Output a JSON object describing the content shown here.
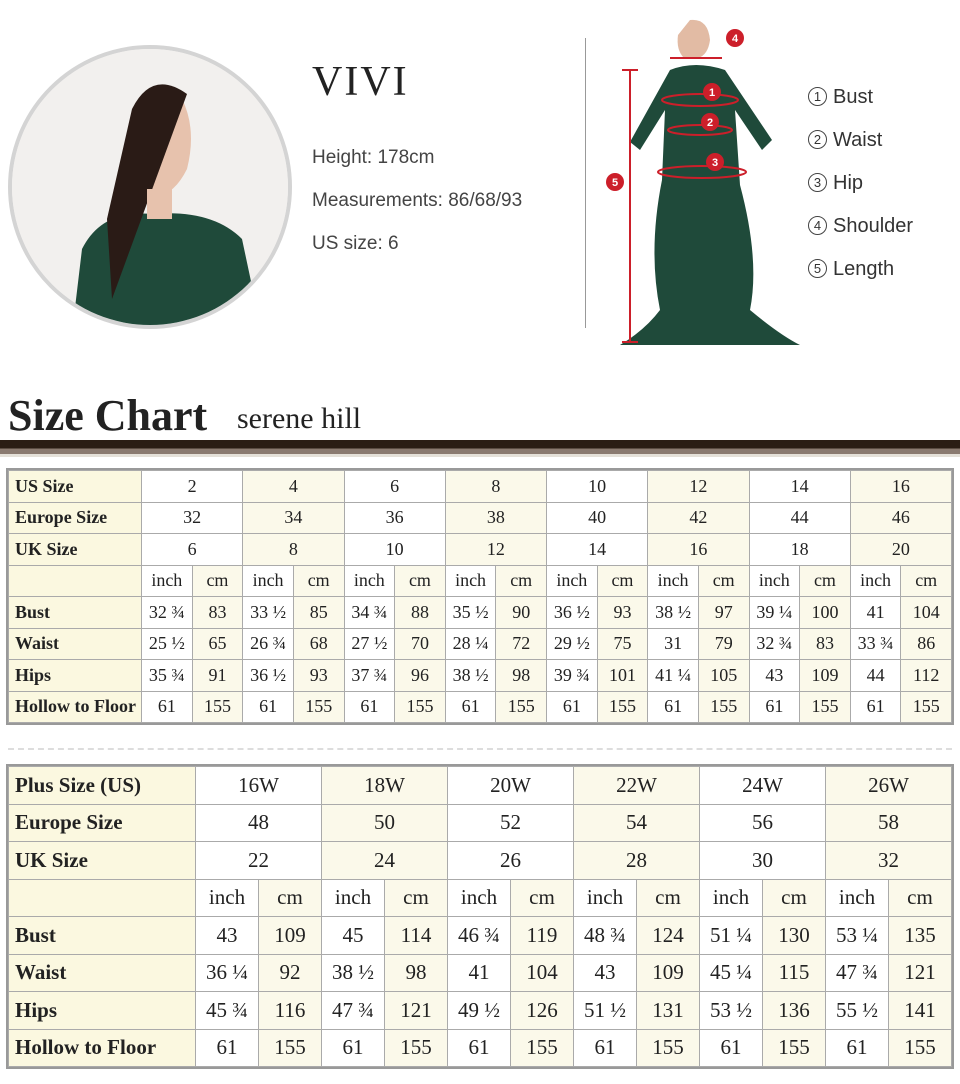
{
  "model": {
    "name": "VIVI",
    "height": "Height: 178cm",
    "measurements": "Measurements: 86/68/93",
    "us_size": "US size: 6"
  },
  "legend": [
    {
      "num": "1",
      "label": "Bust"
    },
    {
      "num": "2",
      "label": "Waist"
    },
    {
      "num": "3",
      "label": "Hip"
    },
    {
      "num": "4",
      "label": "Shoulder"
    },
    {
      "num": "5",
      "label": "Length"
    }
  ],
  "colors": {
    "dress": "#1f4a3a",
    "marker": "#cc1f2a",
    "rule": "#2a1d14",
    "header_cell": "#fbf8e0"
  },
  "title": "Size Chart",
  "brand": "serene hill",
  "standard": {
    "sizes": [
      [
        "US Size",
        "2",
        "4",
        "6",
        "8",
        "10",
        "12",
        "14",
        "16"
      ],
      [
        "Europe Size",
        "32",
        "34",
        "36",
        "38",
        "40",
        "42",
        "44",
        "46"
      ],
      [
        "UK Size",
        "6",
        "8",
        "10",
        "12",
        "14",
        "16",
        "18",
        "20"
      ]
    ],
    "units": [
      "inch",
      "cm"
    ],
    "rows": [
      [
        "Bust",
        "32 ¾",
        "83",
        "33 ½",
        "85",
        "34 ¾",
        "88",
        "35 ½",
        "90",
        "36 ½",
        "93",
        "38 ½",
        "97",
        "39 ¼",
        "100",
        "41",
        "104"
      ],
      [
        "Waist",
        "25 ½",
        "65",
        "26 ¾",
        "68",
        "27 ½",
        "70",
        "28 ¼",
        "72",
        "29 ½",
        "75",
        "31",
        "79",
        "32 ¾",
        "83",
        "33 ¾",
        "86"
      ],
      [
        "Hips",
        "35 ¾",
        "91",
        "36 ½",
        "93",
        "37 ¾",
        "96",
        "38 ½",
        "98",
        "39 ¾",
        "101",
        "41 ¼",
        "105",
        "43",
        "109",
        "44",
        "112"
      ],
      [
        "Hollow to Floor",
        "61",
        "155",
        "61",
        "155",
        "61",
        "155",
        "61",
        "155",
        "61",
        "155",
        "61",
        "155",
        "61",
        "155",
        "61",
        "155"
      ]
    ]
  },
  "plus": {
    "sizes": [
      [
        "Plus Size (US)",
        "16W",
        "18W",
        "20W",
        "22W",
        "24W",
        "26W"
      ],
      [
        "Europe Size",
        "48",
        "50",
        "52",
        "54",
        "56",
        "58"
      ],
      [
        "UK Size",
        "22",
        "24",
        "26",
        "28",
        "30",
        "32"
      ]
    ],
    "units": [
      "inch",
      "cm"
    ],
    "rows": [
      [
        "Bust",
        "43",
        "109",
        "45",
        "114",
        "46 ¾",
        "119",
        "48 ¾",
        "124",
        "51 ¼",
        "130",
        "53 ¼",
        "135"
      ],
      [
        "Waist",
        "36 ¼",
        "92",
        "38 ½",
        "98",
        "41",
        "104",
        "43",
        "109",
        "45 ¼",
        "115",
        "47 ¾",
        "121"
      ],
      [
        "Hips",
        "45 ¾",
        "116",
        "47 ¾",
        "121",
        "49 ½",
        "126",
        "51 ½",
        "131",
        "53 ½",
        "136",
        "55 ½",
        "141"
      ],
      [
        "Hollow to Floor",
        "61",
        "155",
        "61",
        "155",
        "61",
        "155",
        "61",
        "155",
        "61",
        "155",
        "61",
        "155"
      ]
    ]
  }
}
